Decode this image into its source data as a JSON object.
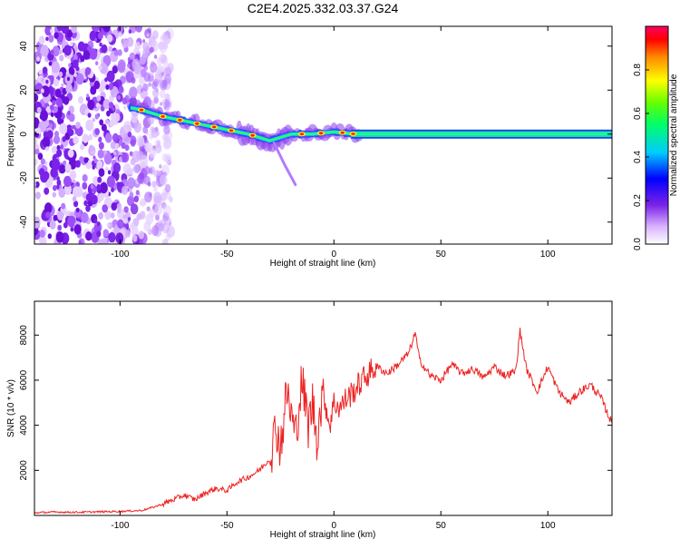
{
  "title": "C2E4.2025.332.03.37.G24",
  "colors": {
    "snr_line": "#ee2222",
    "noise_purple": "#7a22e8",
    "axis": "#000000"
  },
  "chart_data": [
    {
      "type": "heatmap",
      "xlabel": "Height of straight line (km)",
      "ylabel": "Frequency (Hz)",
      "xlim": [
        -140,
        130
      ],
      "ylim": [
        -50,
        49
      ],
      "x_ticks": [
        -100,
        -50,
        0,
        50,
        100
      ],
      "y_ticks": [
        -40,
        -20,
        0,
        20,
        40
      ],
      "colorbar": {
        "label": "Normalized spectral amplitude",
        "range": [
          0.0,
          1.0
        ],
        "ticks": [
          "0.0",
          "0.2",
          "0.4",
          "0.6",
          "0.8"
        ]
      },
      "signal_track": {
        "x": [
          -95,
          -90,
          -80,
          -70,
          -60,
          -50,
          -40,
          -30,
          -20,
          -10,
          0,
          10,
          20,
          40,
          60,
          80,
          100,
          130
        ],
        "frequency": [
          12,
          11,
          8,
          6,
          4,
          2,
          0,
          -3,
          0,
          0,
          1,
          0,
          0,
          0,
          0,
          0,
          0,
          0
        ]
      },
      "noise_region_x": [
        -140,
        -82
      ]
    },
    {
      "type": "line",
      "xlabel": "Height of straight line (km)",
      "ylabel": "SNR (10 * v/v)",
      "xlim": [
        -140,
        130
      ],
      "ylim": [
        0,
        9500
      ],
      "x_ticks": [
        -100,
        -50,
        0,
        50,
        100
      ],
      "y_ticks": [
        2000,
        4000,
        6000,
        8000
      ],
      "series": [
        {
          "x": [
            -140,
            -130,
            -120,
            -110,
            -100,
            -90,
            -85,
            -80,
            -75,
            -70,
            -65,
            -60,
            -55,
            -50,
            -45,
            -40,
            -35,
            -30,
            -27,
            -25,
            -22,
            -20,
            -18,
            -15,
            -12,
            -10,
            -8,
            -5,
            -2,
            0,
            3,
            6,
            10,
            15,
            20,
            25,
            30,
            35,
            38,
            40,
            45,
            50,
            55,
            60,
            65,
            70,
            75,
            80,
            85,
            87,
            90,
            95,
            100,
            105,
            110,
            115,
            120,
            125,
            128,
            130
          ],
          "y": [
            120,
            150,
            140,
            160,
            180,
            220,
            350,
            500,
            700,
            900,
            700,
            1000,
            1200,
            1100,
            1500,
            1700,
            2000,
            2500,
            4000,
            3000,
            5500,
            4500,
            3500,
            6000,
            4000,
            5000,
            3500,
            5500,
            4000,
            5000,
            4800,
            5200,
            5600,
            6200,
            6600,
            6300,
            6700,
            7200,
            8100,
            6900,
            6200,
            6000,
            6700,
            6300,
            6500,
            6100,
            6600,
            6200,
            6400,
            8200,
            6500,
            5500,
            6600,
            5500,
            5000,
            5500,
            5800,
            5200,
            4500,
            4100
          ]
        }
      ]
    }
  ]
}
